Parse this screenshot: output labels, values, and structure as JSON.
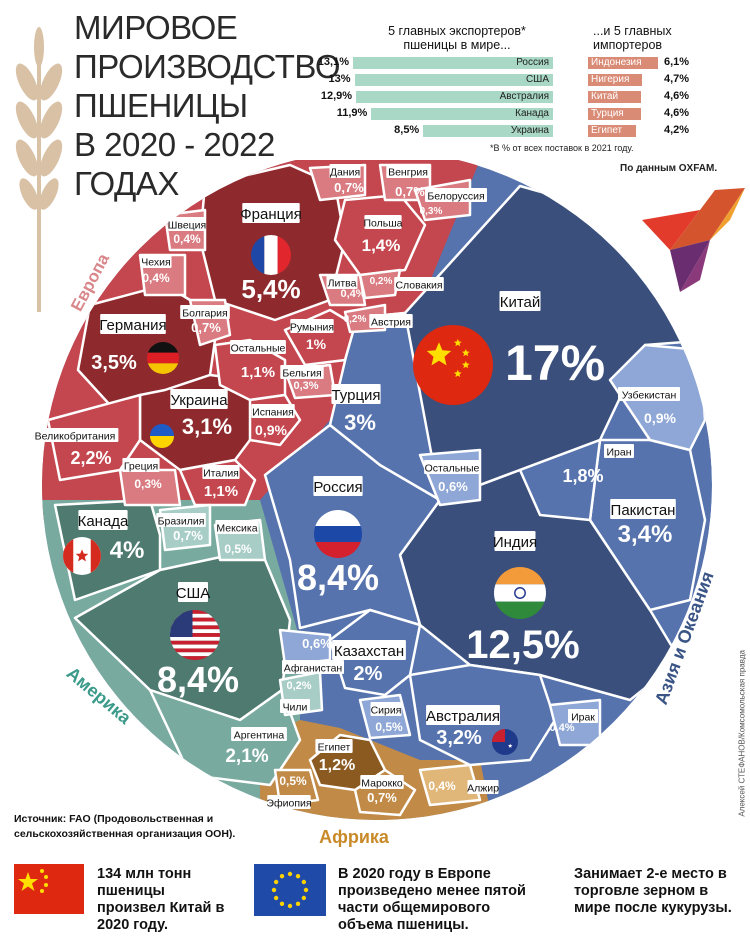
{
  "title_lines": [
    "МИРОВОЕ",
    "ПРОИЗВОДСТВО",
    "ПШЕНИЦЫ",
    "В 2020 - 2022",
    "ГОДАХ"
  ],
  "trade": {
    "exporters_header": "5 главных экспортеров* пшеницы в мире...",
    "importers_header": "...и 5 главных импортеров",
    "exporters": [
      {
        "name": "Россия",
        "pct": "13,1%",
        "value": 13.1
      },
      {
        "name": "США",
        "pct": "13%",
        "value": 13.0
      },
      {
        "name": "Австралия",
        "pct": "12,9%",
        "value": 12.9
      },
      {
        "name": "Канада",
        "pct": "11,9%",
        "value": 11.9
      },
      {
        "name": "Украина",
        "pct": "8,5%",
        "value": 8.5
      }
    ],
    "importers": [
      {
        "name": "Индонезия",
        "pct": "6,1%",
        "value": 6.1
      },
      {
        "name": "Нигерия",
        "pct": "4,7%",
        "value": 4.7
      },
      {
        "name": "Китай",
        "pct": "4,6%",
        "value": 4.6
      },
      {
        "name": "Турция",
        "pct": "4,6%",
        "value": 4.6
      },
      {
        "name": "Египет",
        "pct": "4,2%",
        "value": 4.2
      }
    ],
    "footnote": "*В % от всех поставок в 2021 году.",
    "source_note": "По данным OXFAM."
  },
  "regions": {
    "europe": "Европа",
    "america": "Америка",
    "asia": "Азия и Океания",
    "africa": "Африка"
  },
  "colors": {
    "europe_dark": "#8e2a2e",
    "europe_mid": "#c4464e",
    "europe_light": "#d97b80",
    "asia_dark": "#3a4f7c",
    "asia_mid": "#5673ad",
    "asia_light": "#8ea7d6",
    "america_dark": "#4f7a6f",
    "america_mid": "#79aaa0",
    "america_light": "#a7cdc6",
    "africa_dark": "#8a5a21",
    "africa_mid": "#c18a46",
    "africa_light": "#e1b679",
    "exporter_bar": "#a9d8c7",
    "importer_bar": "#d98b76"
  },
  "chart_data": {
    "type": "voronoi-treemap",
    "unit": "%",
    "items": [
      {
        "country": "Китай",
        "label": "17%",
        "value": 17,
        "region": "Азия и Океания"
      },
      {
        "country": "Индия",
        "label": "12,5%",
        "value": 12.5,
        "region": "Азия и Океания"
      },
      {
        "country": "Россия",
        "label": "8,4%",
        "value": 8.4,
        "region": "Азия и Океания"
      },
      {
        "country": "США",
        "label": "8,4%",
        "value": 8.4,
        "region": "Америка"
      },
      {
        "country": "Франция",
        "label": "5,4%",
        "value": 5.4,
        "region": "Европа"
      },
      {
        "country": "Канада",
        "label": "4%",
        "value": 4.0,
        "region": "Америка"
      },
      {
        "country": "Германия",
        "label": "3,5%",
        "value": 3.5,
        "region": "Европа"
      },
      {
        "country": "Пакистан",
        "label": "3,4%",
        "value": 3.4,
        "region": "Азия и Океания"
      },
      {
        "country": "Австралия",
        "label": "3,2%",
        "value": 3.2,
        "region": "Азия и Океания"
      },
      {
        "country": "Украина",
        "label": "3,1%",
        "value": 3.1,
        "region": "Европа"
      },
      {
        "country": "Турция",
        "label": "3%",
        "value": 3.0,
        "region": "Азия и Океания"
      },
      {
        "country": "Великобритания",
        "label": "2,2%",
        "value": 2.2,
        "region": "Европа"
      },
      {
        "country": "Аргентина",
        "label": "2,1%",
        "value": 2.1,
        "region": "Америка"
      },
      {
        "country": "Казахстан",
        "label": "2%",
        "value": 2.0,
        "region": "Азия и Океания"
      },
      {
        "country": "Иран",
        "label": "1,8%",
        "value": 1.8,
        "region": "Азия и Океания"
      },
      {
        "country": "Польша",
        "label": "1,4%",
        "value": 1.4,
        "region": "Европа"
      },
      {
        "country": "Египет",
        "label": "1,2%",
        "value": 1.2,
        "region": "Африка"
      },
      {
        "country": "Остальные",
        "label": "1,1%",
        "value": 1.1,
        "region": "Европа"
      },
      {
        "country": "Италия",
        "label": "1,1%",
        "value": 1.1,
        "region": "Европа"
      },
      {
        "country": "Румыния",
        "label": "1%",
        "value": 1.0,
        "region": "Европа"
      },
      {
        "country": "Узбекистан",
        "label": "0,9%",
        "value": 0.9,
        "region": "Азия и Океания"
      },
      {
        "country": "Испания",
        "label": "0,9%",
        "value": 0.9,
        "region": "Европа"
      },
      {
        "country": "Бразилия",
        "label": "0,7%",
        "value": 0.7,
        "region": "Америка"
      },
      {
        "country": "Болгария",
        "label": "0,7%",
        "value": 0.7,
        "region": "Европа"
      },
      {
        "country": "Дания",
        "label": "0,7%",
        "value": 0.7,
        "region": "Европа"
      },
      {
        "country": "Венгрия",
        "label": "0,7%",
        "value": 0.7,
        "region": "Европа"
      },
      {
        "country": "Марокко",
        "label": "0,7%",
        "value": 0.7,
        "region": "Африка"
      },
      {
        "country": "Остальные",
        "label": "0,6%",
        "value": 0.6,
        "region": "Азия и Океания"
      },
      {
        "country": "Афганистан",
        "label": "0,6%",
        "value": 0.6,
        "region": "Азия и Океания"
      },
      {
        "country": "Мексика",
        "label": "0,5%",
        "value": 0.5,
        "region": "Америка"
      },
      {
        "country": "Сирия",
        "label": "0,5%",
        "value": 0.5,
        "region": "Азия и Океания"
      },
      {
        "country": "Эфиопия",
        "label": "0,5%",
        "value": 0.5,
        "region": "Африка"
      },
      {
        "country": "Швеция",
        "label": "0,4%",
        "value": 0.4,
        "region": "Европа"
      },
      {
        "country": "Чехия",
        "label": "0,4%",
        "value": 0.4,
        "region": "Европа"
      },
      {
        "country": "Литва",
        "label": "0,4%",
        "value": 0.4,
        "region": "Европа"
      },
      {
        "country": "Ирак",
        "label": "0,4%",
        "value": 0.4,
        "region": "Азия и Океания"
      },
      {
        "country": "Алжир",
        "label": "0,4%",
        "value": 0.4,
        "region": "Африка"
      },
      {
        "country": "Греция",
        "label": "0,3%",
        "value": 0.3,
        "region": "Европа"
      },
      {
        "country": "Бельгия",
        "label": "0,3%",
        "value": 0.3,
        "region": "Европа"
      },
      {
        "country": "Белоруссия",
        "label": "0,3%",
        "value": 0.3,
        "region": "Европа"
      },
      {
        "country": "Словакия",
        "label": "0,2%",
        "value": 0.2,
        "region": "Европа"
      },
      {
        "country": "Австрия",
        "label": "0,2%",
        "value": 0.2,
        "region": "Европа"
      },
      {
        "country": "Чили",
        "label": "0,2%",
        "value": 0.2,
        "region": "Америка"
      }
    ]
  },
  "source": "Источник: FAO (Продовольственная и сельскохозяйственная организация ООН).",
  "facts": [
    "134 млн тонн пшеницы произвел Китай в 2020 году.",
    "В 2020 году в Европе произведено менее пятой части общемирового объема пшеницы.",
    "Занимает 2-е место в торговле зерном в мире после кукурузы."
  ],
  "credit": "Алексей СТЕФАНОВ/Комсомольская правда"
}
